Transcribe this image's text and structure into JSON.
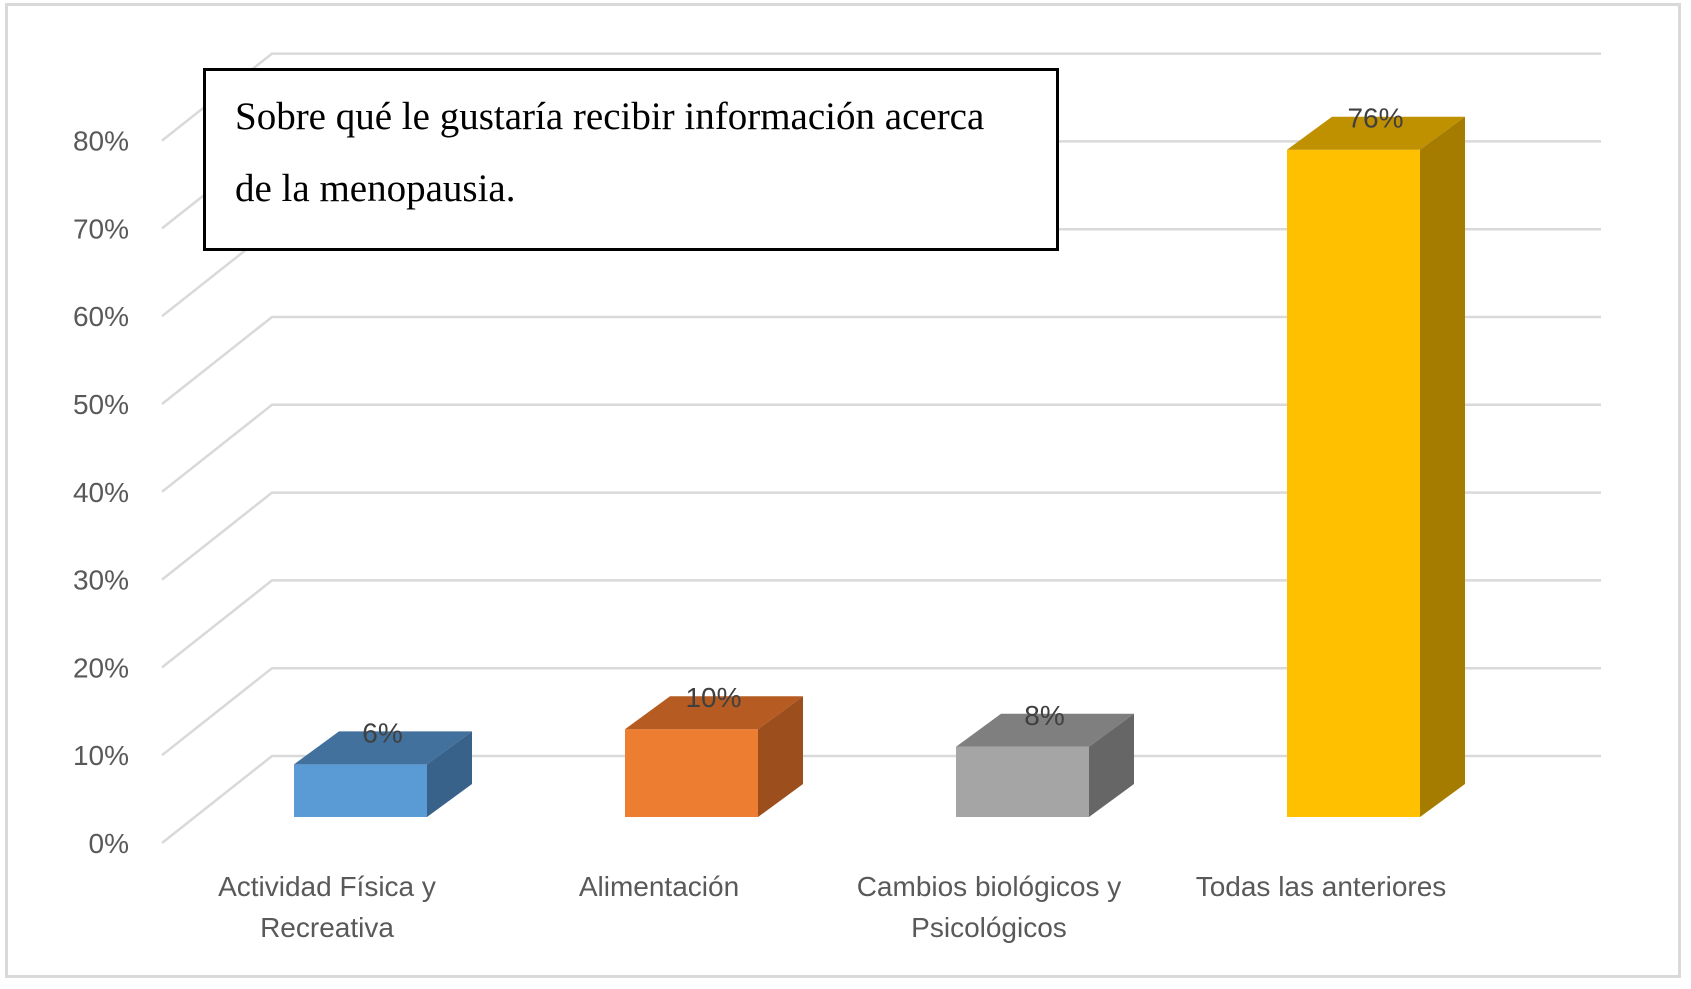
{
  "chart_data": {
    "type": "bar",
    "title": "Sobre qué le gustaría recibir información acerca de la menopausia.",
    "title_lines": [
      "Sobre qué le gustaría recibir información acerca",
      "de la menopausia."
    ],
    "categories": [
      [
        "Actividad Física y",
        "Recreativa"
      ],
      [
        "Alimentación"
      ],
      [
        "Cambios biológicos y",
        "Psicológicos"
      ],
      [
        "Todas las anteriores"
      ]
    ],
    "values": [
      6,
      10,
      8,
      76
    ],
    "data_labels": [
      "6%",
      "10%",
      "8%",
      "76%"
    ],
    "colors": [
      {
        "front": "#5B9BD5",
        "top": "#41719C",
        "side": "#38628A"
      },
      {
        "front": "#ED7D31",
        "top": "#B65C22",
        "side": "#9C4F1D"
      },
      {
        "front": "#A5A5A5",
        "top": "#7F7F7F",
        "side": "#666666"
      },
      {
        "front": "#FFC000",
        "top": "#BF9000",
        "side": "#A67C00"
      }
    ],
    "yticks": [
      "0%",
      "10%",
      "20%",
      "30%",
      "40%",
      "50%",
      "60%",
      "70%",
      "80%"
    ],
    "ylim": [
      0,
      80
    ],
    "xlabel": "",
    "ylabel": "",
    "grid": true,
    "style": "3d-column"
  }
}
